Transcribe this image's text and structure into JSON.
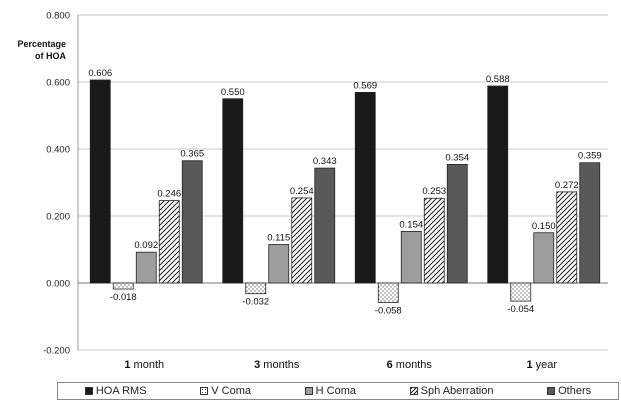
{
  "chart_data": {
    "type": "bar",
    "ylabel": "Percentage of HOA",
    "ylabel_lines": [
      "Percentage",
      "of HOA"
    ],
    "ylim": [
      -0.2,
      0.8
    ],
    "yticks": [
      "-0.200",
      "0.000",
      "0.200",
      "0.400",
      "0.600",
      "0.800"
    ],
    "grid": true,
    "legend_position": "bottom",
    "categories": [
      {
        "num": "1",
        "unit": "month"
      },
      {
        "num": "3",
        "unit": "months"
      },
      {
        "num": "6",
        "unit": "months"
      },
      {
        "num": "1",
        "unit": "year"
      }
    ],
    "series": [
      {
        "name": "HOA RMS",
        "fill": "#1a1a1a",
        "pattern": "solid",
        "values": [
          0.606,
          0.55,
          0.569,
          0.588
        ],
        "labels": [
          "0.606",
          "0.550",
          "0.569",
          "0.588"
        ]
      },
      {
        "name": "V Coma",
        "fill": "#ffffff",
        "pattern": "dots",
        "values": [
          -0.018,
          -0.032,
          -0.058,
          -0.054
        ],
        "labels": [
          "-0.018",
          "-0.032",
          "-0.058",
          "-0.054"
        ]
      },
      {
        "name": "H Coma",
        "fill": "#9e9e9e",
        "pattern": "solid",
        "values": [
          0.092,
          0.115,
          0.154,
          0.15
        ],
        "labels": [
          "0.092",
          "0.115",
          "0.154",
          "0.150"
        ]
      },
      {
        "name": "Sph Aberration",
        "fill": "#ffffff",
        "pattern": "hatch",
        "values": [
          0.246,
          0.254,
          0.253,
          0.272
        ],
        "labels": [
          "0.246",
          "0.254",
          "0.253",
          "0.272"
        ]
      },
      {
        "name": "Others",
        "fill": "#595959",
        "pattern": "solid",
        "values": [
          0.365,
          0.343,
          0.354,
          0.359
        ],
        "labels": [
          "0.365",
          "0.343",
          "0.354",
          "0.359"
        ]
      }
    ]
  }
}
